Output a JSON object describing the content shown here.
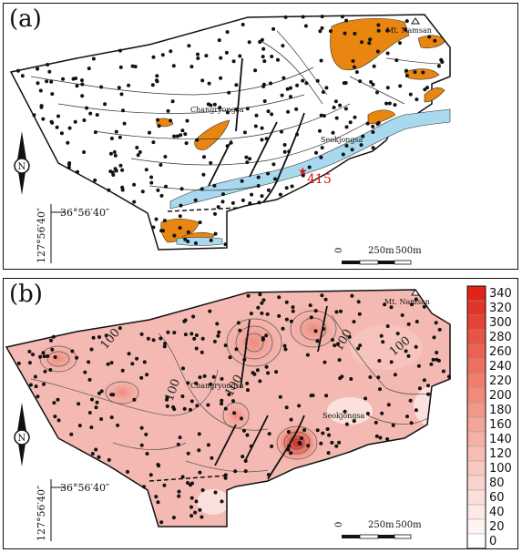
{
  "panels": {
    "a": {
      "label": "(a)",
      "places": {
        "mt_namsan": "Mt. Namsan",
        "changryongsa": "Changryongsa",
        "seokjongsa": "Seokjongsa"
      },
      "sample_label": "415",
      "coords": {
        "lat": "36°56′40″",
        "lon": "127°56′40″"
      },
      "scale": {
        "zero": "0",
        "mid": "250m",
        "end": "500m"
      }
    },
    "b": {
      "label": "(b)",
      "places": {
        "mt_namsan": "Mt. Namsan",
        "changryongsa": "Changryongsa",
        "seokjongsa": "Seokjongsa"
      },
      "contour_labels": [
        "100",
        "100",
        "100",
        "100",
        "100"
      ],
      "coords": {
        "lat": "36°56′40″",
        "lon": "127°56′40″"
      },
      "scale": {
        "zero": "0",
        "mid": "250m",
        "end": "500m"
      },
      "legend": {
        "ticks": [
          "340",
          "320",
          "300",
          "280",
          "260",
          "240",
          "220",
          "200",
          "180",
          "160",
          "140",
          "120",
          "100",
          "80",
          "60",
          "40",
          "20",
          "0"
        ],
        "colors": [
          "#e2231a",
          "#e43328",
          "#e64336",
          "#e85345",
          "#ea6252",
          "#ec7060",
          "#ee7e6e",
          "#f08b7c",
          "#f2988a",
          "#f4a599",
          "#f6b1a7",
          "#f8bdb5",
          "#f9c8c2",
          "#fbd3ce",
          "#fcdeda",
          "#fde9e6",
          "#fef4f2",
          "#ffffff"
        ]
      }
    }
  }
}
